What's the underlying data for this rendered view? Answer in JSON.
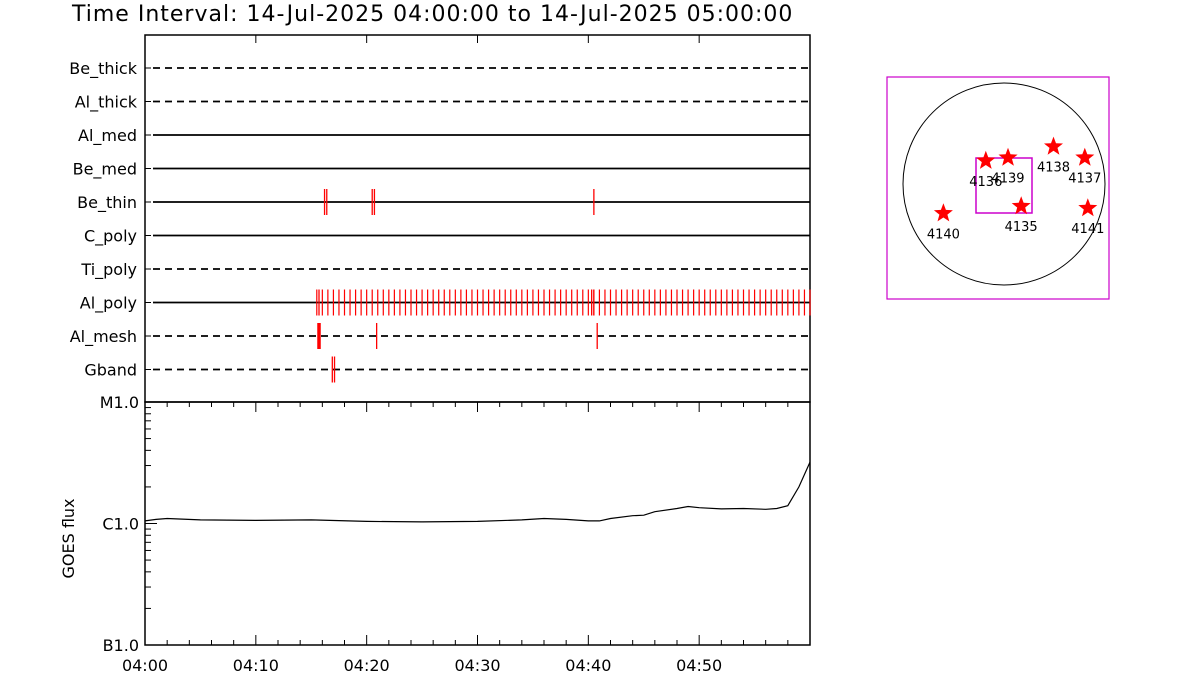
{
  "title": "Time Interval: 14-Jul-2025 04:00:00 to 14-Jul-2025 05:00:00",
  "chart_data": [
    {
      "type": "event-timeline",
      "x_range_minutes": [
        0,
        60
      ],
      "x_ticks": [
        "04:00",
        "04:10",
        "04:20",
        "04:30",
        "04:40",
        "04:50"
      ],
      "colors": {
        "frame": "#000000",
        "event": "#ff0000"
      },
      "channels": [
        {
          "label": "Be_thick",
          "line": "dashed",
          "events": []
        },
        {
          "label": "Al_thick",
          "line": "dashed",
          "events": []
        },
        {
          "label": "Al_med",
          "line": "solid",
          "events": []
        },
        {
          "label": "Be_med",
          "line": "solid",
          "events": []
        },
        {
          "label": "Be_thin",
          "line": "solid",
          "events": [
            16.2,
            16.4,
            20.5,
            20.7,
            40.5
          ]
        },
        {
          "label": "C_poly",
          "line": "solid",
          "events": []
        },
        {
          "label": "Ti_poly",
          "line": "dashed",
          "events": []
        },
        {
          "label": "Al_poly",
          "line": "solid",
          "regular": {
            "start": 15.5,
            "end": 60,
            "step": 0.5
          },
          "events": [
            15.7,
            40.3,
            40.5
          ]
        },
        {
          "label": "Al_mesh",
          "line": "dashed",
          "events": [
            15.6,
            15.7,
            15.8,
            20.9,
            40.8
          ]
        },
        {
          "label": "Gband",
          "line": "dashed",
          "events": [
            16.9,
            17.1
          ]
        }
      ]
    },
    {
      "type": "line",
      "ylabel": "GOES flux",
      "yscale": "log",
      "y_ticks": [
        "M1.0",
        "C1.0",
        "B1.0"
      ],
      "ylim": [
        1e-07,
        1e-05
      ],
      "x_range_minutes": [
        0,
        60
      ],
      "x_ticks": [
        "04:00",
        "04:10",
        "04:20",
        "04:30",
        "04:40",
        "04:50"
      ],
      "x": [
        0,
        1,
        2,
        5,
        10,
        15,
        20,
        25,
        30,
        34,
        36,
        38,
        40,
        41,
        42,
        44,
        45,
        46,
        48,
        49,
        50,
        52,
        54,
        56,
        57,
        58,
        59,
        60
      ],
      "y": [
        1.05e-06,
        1.08e-06,
        1.1e-06,
        1.07e-06,
        1.06e-06,
        1.07e-06,
        1.04e-06,
        1.03e-06,
        1.04e-06,
        1.07e-06,
        1.1e-06,
        1.08e-06,
        1.05e-06,
        1.05e-06,
        1.1e-06,
        1.16e-06,
        1.17e-06,
        1.25e-06,
        1.33e-06,
        1.38e-06,
        1.35e-06,
        1.32e-06,
        1.33e-06,
        1.31e-06,
        1.33e-06,
        1.4e-06,
        2e-06,
        3.2e-06
      ]
    },
    {
      "type": "scatter",
      "name": "active-region-map",
      "colors": {
        "marker": "#ff0000",
        "frame": "#cc00cc",
        "disk": "#000000"
      },
      "points": [
        {
          "label": "4136",
          "x": -0.18,
          "y": 0.23
        },
        {
          "label": "4139",
          "x": 0.04,
          "y": 0.26
        },
        {
          "label": "4138",
          "x": 0.49,
          "y": 0.37
        },
        {
          "label": "4137",
          "x": 0.8,
          "y": 0.26
        },
        {
          "label": "4135",
          "x": 0.17,
          "y": -0.22
        },
        {
          "label": "4140",
          "x": -0.6,
          "y": -0.29
        },
        {
          "label": "4141",
          "x": 0.83,
          "y": -0.24
        }
      ]
    }
  ]
}
